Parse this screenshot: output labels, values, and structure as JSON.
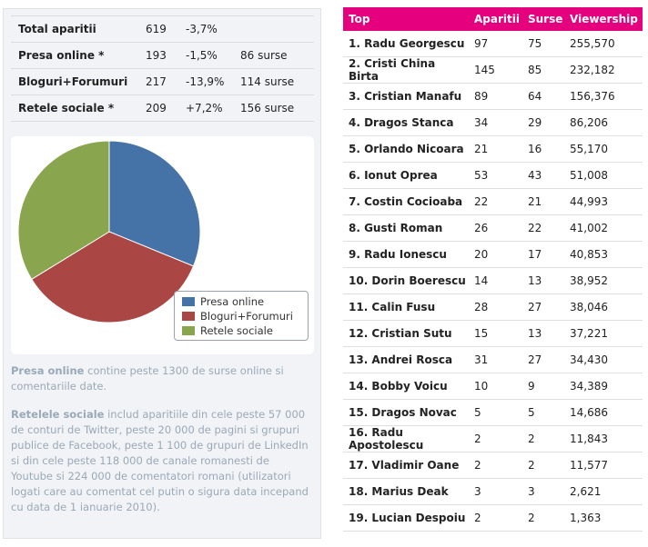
{
  "summary": [
    {
      "label": "Total aparitii",
      "count": "619",
      "change": "-3,7%",
      "sources": ""
    },
    {
      "label": "Presa online *",
      "count": "193",
      "change": "-1,5%",
      "sources": "86 surse"
    },
    {
      "label": "Bloguri+Forumuri",
      "count": "217",
      "change": "-13,9%",
      "sources": "114 surse"
    },
    {
      "label": "Retele sociale *",
      "count": "209",
      "change": "+7,2%",
      "sources": "156 surse"
    }
  ],
  "chart_data": {
    "type": "pie",
    "labels": [
      "Presa online",
      "Bloguri+Forumuri",
      "Retele sociale"
    ],
    "values": [
      193,
      217,
      209
    ],
    "colors": [
      "#4572a7",
      "#aa4643",
      "#89a54e"
    ],
    "legend_position": "bottom-right"
  },
  "notes": {
    "presa_keyword": "Presa online",
    "presa_text": " contine peste 1300 de surse online si comentariile date.",
    "retele_keyword": "Retelele sociale",
    "retele_text": " includ aparitiile din cele peste 57 000 de conturi de Twitter, peste 20 000 de pagini si grupuri publice de Facebook,  peste 1 100 de grupuri de LinkedIn si din cele peste 118 000 de canale romanesti de Youtube si 224 000 de comentatori romani (utilizatori logati care au comentat cel putin o sigura data incepand cu data de 1 ianuarie 2010)."
  },
  "top": {
    "headers": {
      "name": "Top",
      "aparitii": "Aparitii",
      "surse": "Surse",
      "viewership": "Viewership"
    },
    "rows": [
      {
        "name": "1. Radu Georgescu",
        "aparitii": "97",
        "surse": "75",
        "viewership": "255,570"
      },
      {
        "name": "2. Cristi China Birta",
        "aparitii": "145",
        "surse": "85",
        "viewership": "232,182"
      },
      {
        "name": "3. Cristian Manafu",
        "aparitii": "89",
        "surse": "64",
        "viewership": "156,376"
      },
      {
        "name": "4. Dragos Stanca",
        "aparitii": "34",
        "surse": "29",
        "viewership": "86,206"
      },
      {
        "name": "5. Orlando Nicoara",
        "aparitii": "21",
        "surse": "16",
        "viewership": "55,170"
      },
      {
        "name": "6. Ionut Oprea",
        "aparitii": "53",
        "surse": "43",
        "viewership": "51,008"
      },
      {
        "name": "7. Costin Cocioaba",
        "aparitii": "22",
        "surse": "21",
        "viewership": "44,993"
      },
      {
        "name": "8. Gusti Roman",
        "aparitii": "26",
        "surse": "22",
        "viewership": "41,002"
      },
      {
        "name": "9. Radu Ionescu",
        "aparitii": "20",
        "surse": "17",
        "viewership": "40,853"
      },
      {
        "name": "10. Dorin Boerescu",
        "aparitii": "14",
        "surse": "13",
        "viewership": "38,952"
      },
      {
        "name": "11. Calin Fusu",
        "aparitii": "28",
        "surse": "27",
        "viewership": "38,046"
      },
      {
        "name": "12. Cristian Sutu",
        "aparitii": "15",
        "surse": "13",
        "viewership": "37,221"
      },
      {
        "name": "13. Andrei Rosca",
        "aparitii": "31",
        "surse": "27",
        "viewership": "34,430"
      },
      {
        "name": "14. Bobby Voicu",
        "aparitii": "10",
        "surse": "9",
        "viewership": "34,389"
      },
      {
        "name": "15. Dragos Novac",
        "aparitii": "5",
        "surse": "5",
        "viewership": "14,686"
      },
      {
        "name": "16. Radu Apostolescu",
        "aparitii": "2",
        "surse": "2",
        "viewership": "11,843"
      },
      {
        "name": "17. Vladimir Oane",
        "aparitii": "2",
        "surse": "2",
        "viewership": "11,577"
      },
      {
        "name": "18. Marius Deak",
        "aparitii": "3",
        "surse": "3",
        "viewership": "2,621"
      },
      {
        "name": "19. Lucian Despoiu",
        "aparitii": "2",
        "surse": "2",
        "viewership": "1,363"
      }
    ]
  }
}
